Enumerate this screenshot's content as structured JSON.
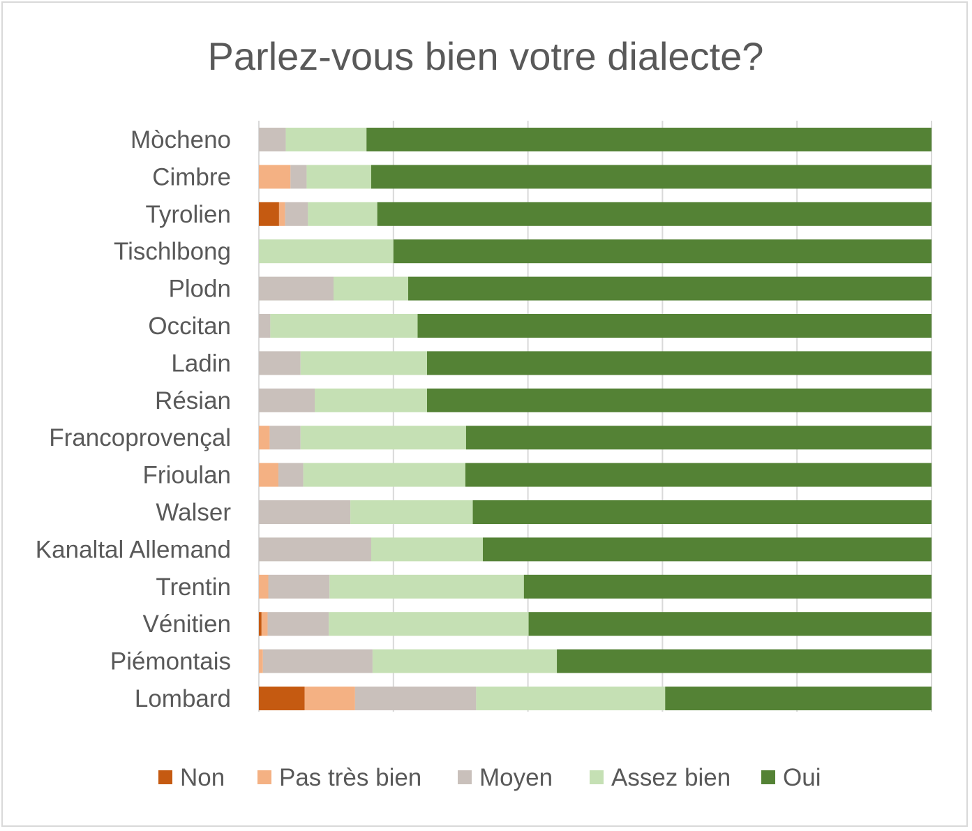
{
  "chart_data": {
    "type": "bar",
    "orientation": "horizontal",
    "stacked": "percent",
    "title": "Parlez-vous bien votre dialecte?",
    "xlabel": "",
    "ylabel": "",
    "xlim": [
      0,
      100
    ],
    "grid": true,
    "legend_position": "bottom",
    "categories": [
      "Mòcheno",
      "Cimbre",
      "Tyrolien",
      "Tischlbong",
      "Plodn",
      "Occitan",
      "Ladin",
      "Résian",
      "Francoprovençal",
      "Frioulan",
      "Walser",
      "Kanaltal Allemand",
      "Trentin",
      "Vénitien",
      "Piémontais",
      "Lombard"
    ],
    "series": [
      {
        "name": "Non",
        "color": "#c55a11",
        "values": [
          0,
          0,
          3,
          0,
          0,
          0,
          0,
          0,
          0,
          0,
          0,
          0,
          0,
          0.4,
          0,
          6.8
        ]
      },
      {
        "name": "Pas très bien",
        "color": "#f4b183",
        "values": [
          0,
          4.7,
          0.9,
          0,
          0,
          0,
          0,
          0,
          1.6,
          2.9,
          0,
          0,
          1.4,
          0.9,
          0.6,
          7.5
        ]
      },
      {
        "name": "Moyen",
        "color": "#c9c0bb",
        "values": [
          4,
          2.4,
          3.4,
          0,
          11.1,
          1.7,
          6.2,
          8.3,
          4.6,
          3.7,
          13.6,
          16.7,
          9.1,
          9.1,
          16.3,
          18
        ]
      },
      {
        "name": "Assez bien",
        "color": "#c5e0b4",
        "values": [
          12,
          9.6,
          10.3,
          20,
          11.1,
          21.9,
          18.8,
          16.7,
          24.6,
          24.1,
          18.2,
          16.6,
          28.9,
          29.7,
          27.4,
          28.1
        ]
      },
      {
        "name": "Oui",
        "color": "#548235",
        "values": [
          84,
          83.3,
          82.4,
          80,
          77.8,
          76.4,
          75,
          75,
          69.2,
          69.3,
          68.2,
          66.7,
          60.6,
          59.9,
          55.7,
          39.6
        ]
      }
    ]
  }
}
